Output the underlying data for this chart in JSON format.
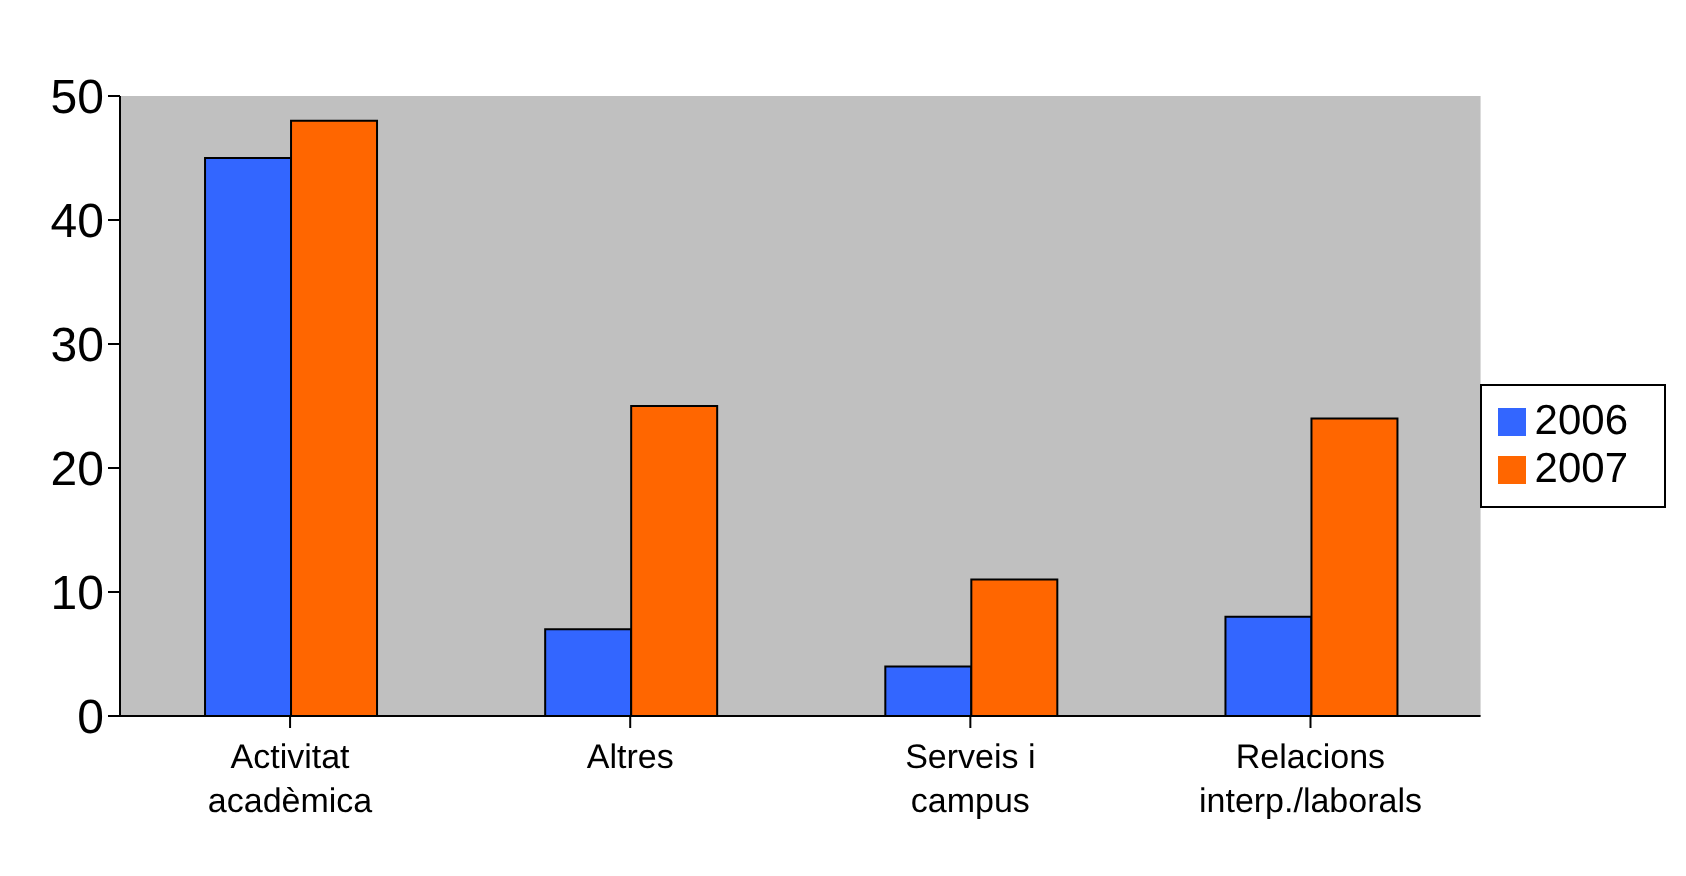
{
  "chart_data": {
    "type": "bar",
    "categories": [
      "Activitat acadèmica",
      "Altres",
      "Serveis i campus",
      "Relacions interp./laborals"
    ],
    "series": [
      {
        "name": "2006",
        "color": "#3366ff",
        "values": [
          45,
          7,
          4,
          8
        ]
      },
      {
        "name": "2007",
        "color": "#ff6600",
        "values": [
          48,
          25,
          11,
          24
        ]
      }
    ],
    "ylim": [
      0,
      50
    ],
    "yticks": [
      0,
      10,
      20,
      30,
      40,
      50
    ],
    "grid": false,
    "legend": "right"
  }
}
